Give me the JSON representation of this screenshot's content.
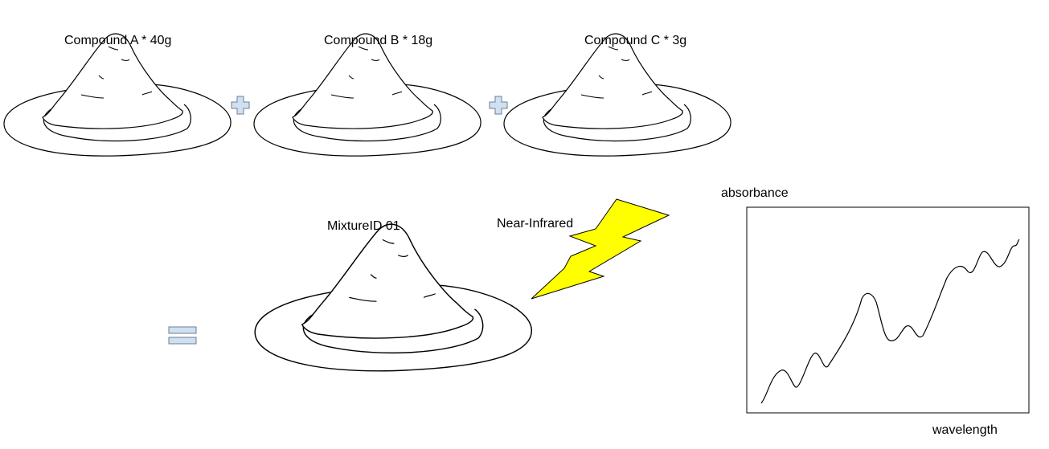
{
  "compounds": [
    {
      "label": "Compound A * 40g"
    },
    {
      "label": "Compound B * 18g"
    },
    {
      "label": "Compound C * 3g"
    }
  ],
  "mixture": {
    "label": "MixtureID 01"
  },
  "light_source": {
    "label": "Near-Infrared"
  },
  "spectrum": {
    "ylabel": "absorbance",
    "xlabel": "wavelength"
  },
  "colors": {
    "operator_fill": "#cfe0f1",
    "operator_stroke": "#6b7f95",
    "bolt_fill": "#ffff00",
    "line": "#000000"
  },
  "icons": [
    "plus-icon",
    "plus-icon",
    "equals-icon",
    "lightning-bolt-icon",
    "powder-pile-icon"
  ]
}
